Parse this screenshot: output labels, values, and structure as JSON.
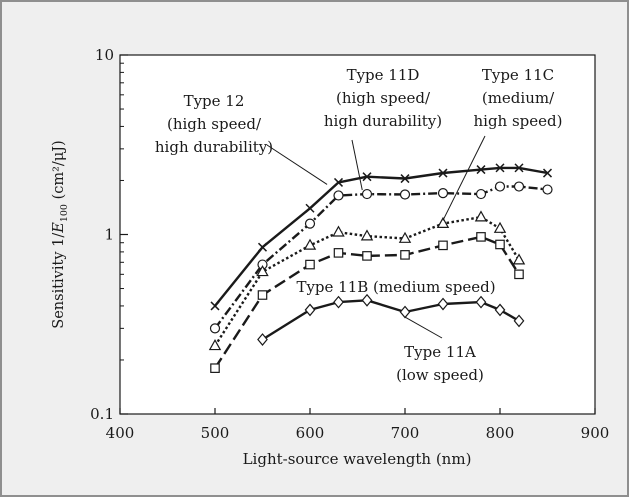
{
  "chart_data": {
    "type": "line",
    "xlabel": "Light-source wavelength (nm)",
    "ylabel": {
      "prefix": "Sensitivity 1/",
      "symbol": "E",
      "sub": "100",
      "suffix": " (cm²/μJ)"
    },
    "xlim": [
      400,
      900
    ],
    "ylim": [
      0.1,
      10
    ],
    "yscale": "log",
    "xticks": [
      "400",
      "500",
      "600",
      "700",
      "800",
      "900"
    ],
    "yticks": [
      "0.1",
      "1",
      "10"
    ],
    "grid": false,
    "colors": {
      "plot_bg": "#ffffff",
      "frame_bg": "#efefef",
      "ink": "#1a1a1a"
    },
    "series": [
      {
        "key": "t12",
        "marker": "cross",
        "dash": "solid",
        "x": [
          500,
          550,
          600,
          630,
          660,
          700,
          740,
          780,
          800,
          820,
          850
        ],
        "y": [
          0.4,
          0.85,
          1.4,
          1.95,
          2.1,
          2.05,
          2.2,
          2.3,
          2.35,
          2.35,
          2.2
        ]
      },
      {
        "key": "t11d",
        "marker": "circle",
        "dash": "dashdot",
        "x": [
          500,
          550,
          600,
          630,
          660,
          700,
          740,
          780,
          800,
          820,
          850
        ],
        "y": [
          0.3,
          0.68,
          1.15,
          1.65,
          1.68,
          1.67,
          1.7,
          1.68,
          1.85,
          1.85,
          1.78
        ]
      },
      {
        "key": "t11c",
        "marker": "triangle",
        "dash": "dotted",
        "x": [
          500,
          550,
          600,
          630,
          660,
          700,
          740,
          780,
          800,
          820
        ],
        "y": [
          0.24,
          0.62,
          0.87,
          1.03,
          0.98,
          0.95,
          1.15,
          1.25,
          1.08,
          0.72
        ]
      },
      {
        "key": "t11b",
        "marker": "square",
        "dash": "longdash",
        "x": [
          500,
          550,
          600,
          630,
          660,
          700,
          740,
          780,
          800,
          820
        ],
        "y": [
          0.18,
          0.46,
          0.68,
          0.79,
          0.76,
          0.77,
          0.87,
          0.97,
          0.88,
          0.6
        ]
      },
      {
        "key": "t11a",
        "marker": "diamond",
        "dash": "solid",
        "x": [
          550,
          600,
          630,
          660,
          700,
          740,
          780,
          800,
          820
        ],
        "y": [
          0.26,
          0.38,
          0.42,
          0.43,
          0.37,
          0.41,
          0.42,
          0.38,
          0.33
        ]
      }
    ],
    "annotations": [
      {
        "key": "t12",
        "lines": [
          "Type 12",
          "(high speed/",
          "high durability)"
        ]
      },
      {
        "key": "t11d",
        "lines": [
          "Type 11D",
          "(high speed/",
          "high durability)"
        ]
      },
      {
        "key": "t11c",
        "lines": [
          "Type 11C",
          "(medium/",
          "high speed)"
        ]
      },
      {
        "key": "t11b",
        "lines": [
          "Type 11B (medium speed)"
        ]
      },
      {
        "key": "t11a",
        "lines": [
          "Type 11A",
          "(low speed)"
        ]
      }
    ]
  }
}
